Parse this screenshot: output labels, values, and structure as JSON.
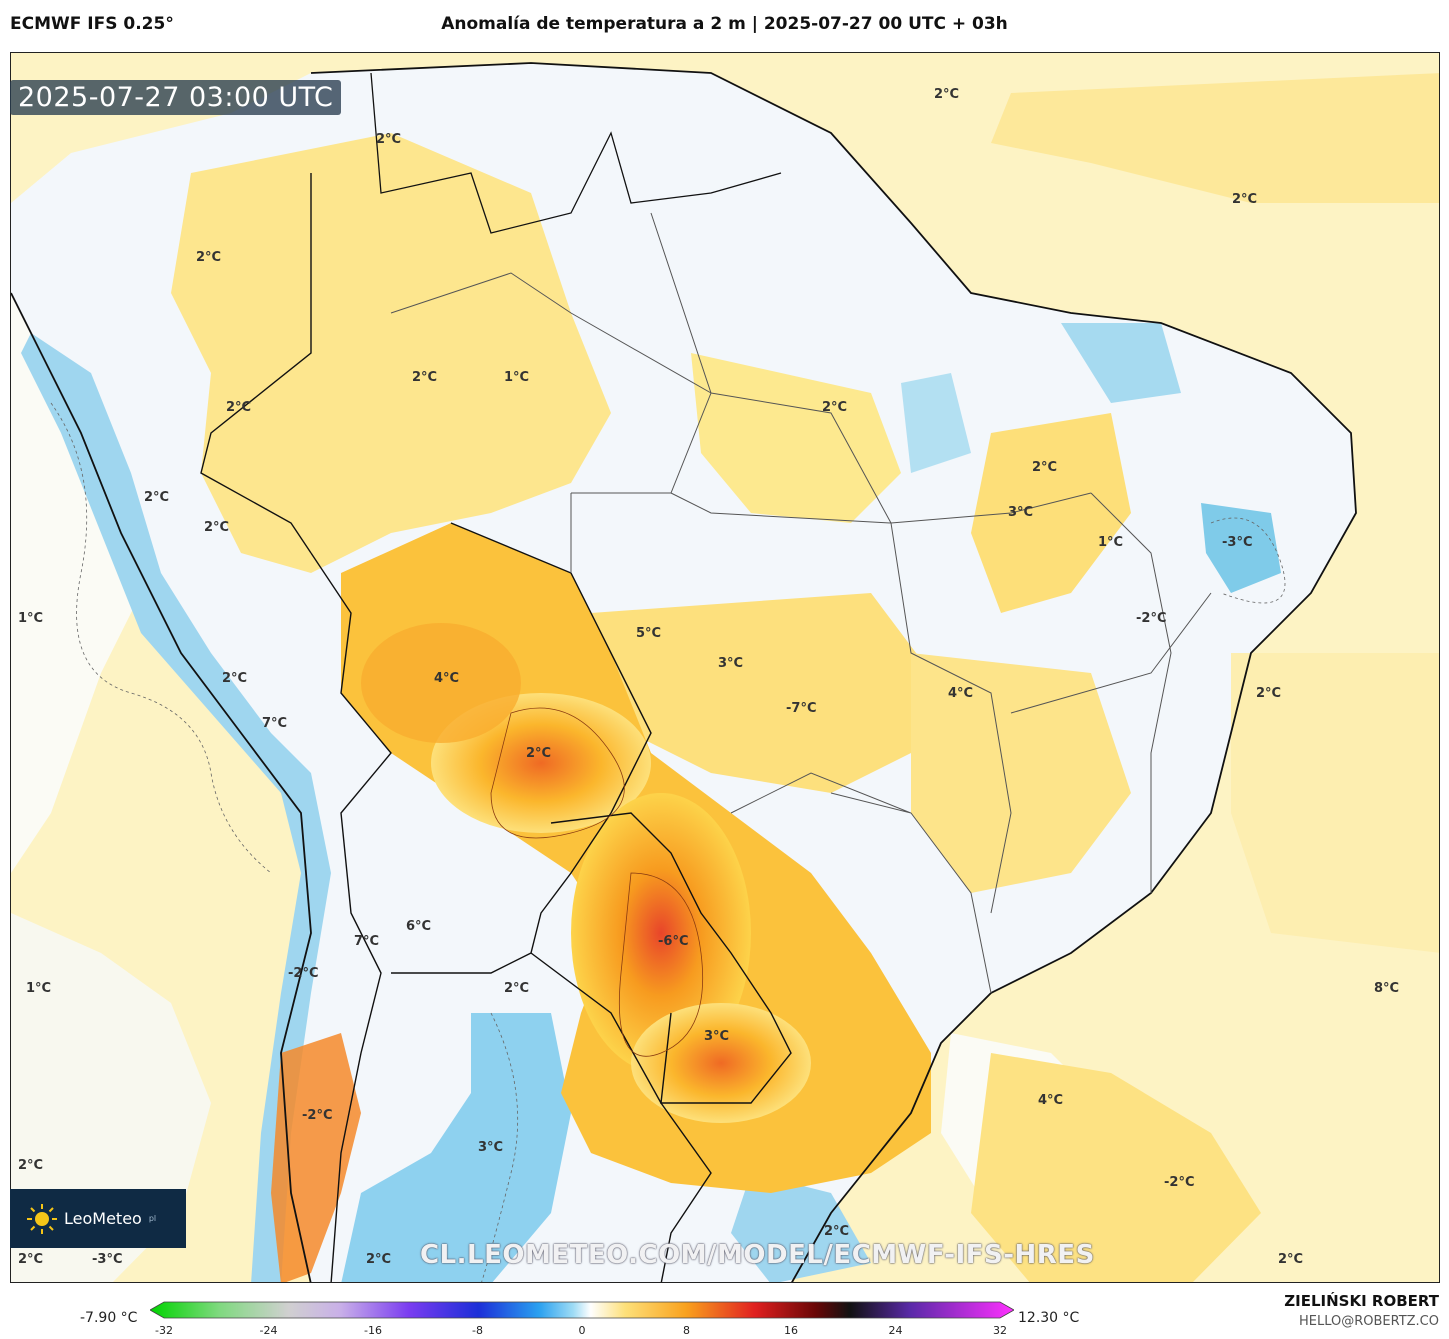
{
  "header": {
    "model": "ECMWF IFS 0.25°",
    "title": "Anomalía de temperatura a 2 m | 2025-07-27 00 UTC + 03h"
  },
  "timestamp": "2025-07-27 03:00 UTC",
  "logo": {
    "name": "LeoMeteo",
    "suffix": "pl"
  },
  "watermark": "CL.LEOMETEO.COM/MODEL/ECMWF-IFS-HRES",
  "map_labels": [
    {
      "text": "2°C"
    },
    {
      "text": "2°C"
    },
    {
      "text": "2°C"
    },
    {
      "text": "2°C"
    },
    {
      "text": "1°C"
    },
    {
      "text": "2°C"
    },
    {
      "text": "2°C"
    },
    {
      "text": "2°C"
    },
    {
      "text": "2°C"
    },
    {
      "text": "2°C"
    },
    {
      "text": "3°C"
    },
    {
      "text": "2°C"
    },
    {
      "text": "-3°C"
    },
    {
      "text": "1°C"
    },
    {
      "text": "1°C"
    },
    {
      "text": "-2°C"
    },
    {
      "text": "5°C"
    },
    {
      "text": "3°C"
    },
    {
      "text": "4°C"
    },
    {
      "text": "2°C"
    },
    {
      "text": "4°C"
    },
    {
      "text": "2°C"
    },
    {
      "text": "-7°C"
    },
    {
      "text": "7°C"
    },
    {
      "text": "2°C"
    },
    {
      "text": "6°C"
    },
    {
      "text": "7°C"
    },
    {
      "text": "-6°C"
    },
    {
      "text": "-2°C"
    },
    {
      "text": "2°C"
    },
    {
      "text": "1°C"
    },
    {
      "text": "8°C"
    },
    {
      "text": "3°C"
    },
    {
      "text": "4°C"
    },
    {
      "text": "-2°C"
    },
    {
      "text": "3°C"
    },
    {
      "text": "2°C"
    },
    {
      "text": "-2°C"
    },
    {
      "text": "2°C"
    },
    {
      "text": "2°C"
    },
    {
      "text": "-3°C"
    },
    {
      "text": "2°C"
    },
    {
      "text": "2°C"
    }
  ],
  "colorbar": {
    "min_label": "-7.90 °C",
    "max_label": "12.30 °C",
    "ticks": [
      "-32",
      "-24",
      "-16",
      "-8",
      "0",
      "8",
      "16",
      "24",
      "32"
    ],
    "range": [
      -32,
      32
    ]
  },
  "footer": {
    "author": "ZIELIŃSKI ROBERT",
    "email": "HELLO@ROBERTZ.CO"
  }
}
